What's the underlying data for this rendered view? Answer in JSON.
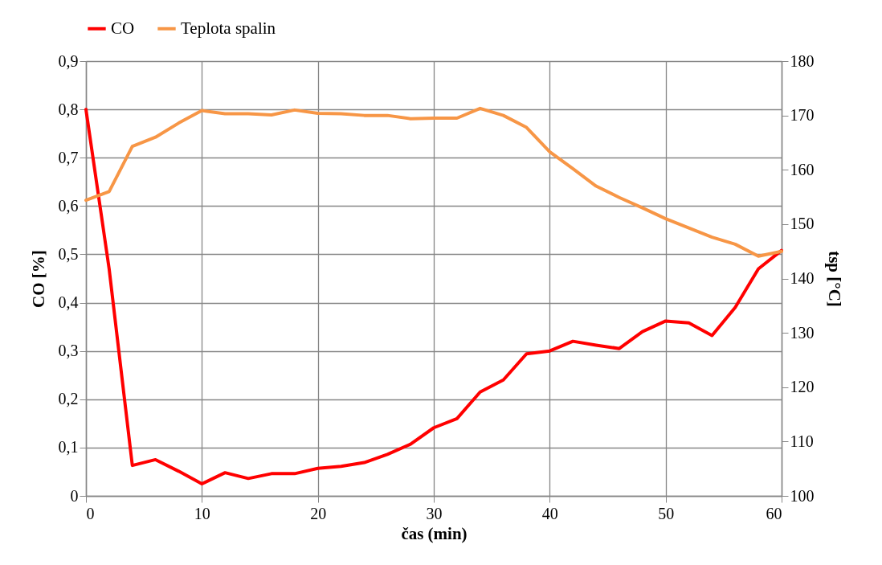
{
  "chart_data": {
    "type": "line",
    "xlabel": "čas (min)",
    "ylabel": "CO [%]",
    "y2label": "tsp [°C]",
    "x": [
      0,
      2,
      4,
      6,
      8,
      10,
      12,
      14,
      16,
      18,
      20,
      22,
      24,
      26,
      28,
      30,
      32,
      34,
      36,
      38,
      40,
      42,
      44,
      46,
      48,
      50,
      52,
      54,
      56,
      58,
      60
    ],
    "series": [
      {
        "name": "CO",
        "color": "#ff0000",
        "values": [
          0.8,
          0.47,
          0.063,
          0.075,
          0.051,
          0.025,
          0.048,
          0.036,
          0.046,
          0.046,
          0.057,
          0.061,
          0.069,
          0.086,
          0.107,
          0.141,
          0.16,
          0.215,
          0.24,
          0.294,
          0.3,
          0.32,
          0.312,
          0.305,
          0.34,
          0.362,
          0.358,
          0.332,
          0.39,
          0.47,
          0.508
        ]
      },
      {
        "name": "Teplota spalin",
        "color": "#f79646",
        "axis": "y2",
        "values": [
          154.4,
          156,
          164.3,
          166,
          168.6,
          170.9,
          170.3,
          170.3,
          170.1,
          171,
          170.4,
          170.3,
          170,
          170,
          169.4,
          169.5,
          169.5,
          171.3,
          170,
          167.8,
          163.3,
          160.2,
          157,
          154.9,
          153,
          151,
          149.3,
          147.6,
          146.3,
          144.1,
          145
        ]
      }
    ],
    "xlim": [
      0,
      60
    ],
    "xticks": [
      0,
      10,
      20,
      30,
      40,
      50,
      60
    ],
    "ylim": [
      0,
      0.9
    ],
    "yticks": [
      0,
      {
        "value": 0.1,
        "label": "0,1"
      },
      {
        "value": 0.2,
        "label": "0,2"
      },
      {
        "value": 0.3,
        "label": "0,3"
      },
      {
        "value": 0.4,
        "label": "0,4"
      },
      {
        "value": 0.5,
        "label": "0,5"
      },
      {
        "value": 0.6,
        "label": "0,6"
      },
      {
        "value": 0.7,
        "label": "0,7"
      },
      {
        "value": 0.8,
        "label": "0,8"
      },
      {
        "value": 0.9,
        "label": "0,9"
      }
    ],
    "y2lim": [
      100,
      180
    ],
    "y2ticks": [
      100,
      110,
      120,
      130,
      140,
      150,
      160,
      170,
      180
    ],
    "grid": true,
    "legend": "top",
    "marker": "none",
    "line_style": "solid"
  }
}
